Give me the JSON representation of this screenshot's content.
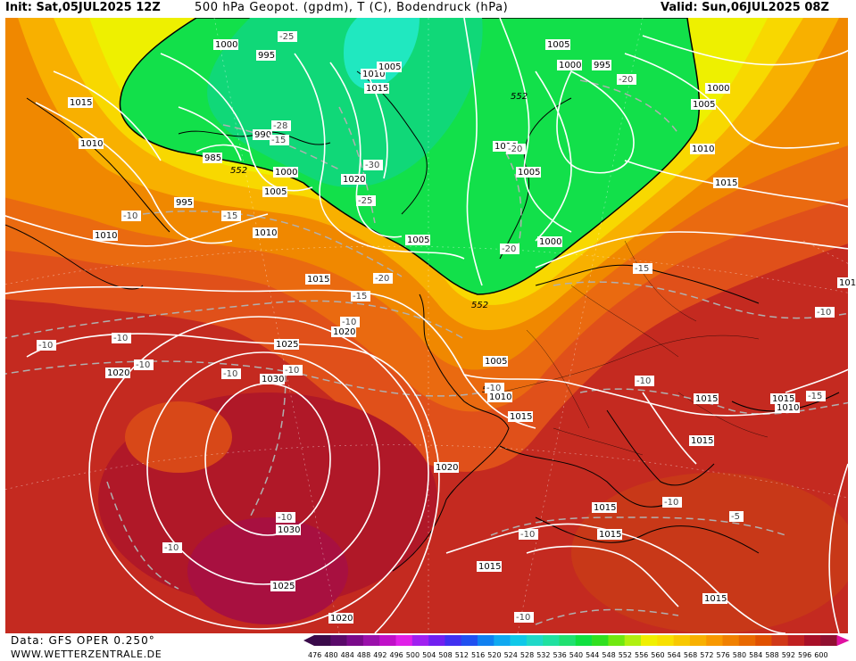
{
  "header": {
    "init": "Init: Sat,05JUL2025 12Z",
    "title": "500 hPa Geopot. (gpdm), T (C), Bodendruck (hPa)",
    "valid": "Valid: Sun,06JUL2025 08Z"
  },
  "footer": {
    "source": "Data: GFS OPER 0.250°",
    "site": "WWW.WETTERZENTRALE.DE"
  },
  "colorscale": {
    "labels": [
      "476",
      "480",
      "484",
      "488",
      "492",
      "496",
      "500",
      "504",
      "508",
      "512",
      "516",
      "520",
      "524",
      "528",
      "532",
      "536",
      "540",
      "544",
      "548",
      "552",
      "556",
      "560",
      "564",
      "568",
      "572",
      "576",
      "580",
      "584",
      "588",
      "592",
      "596",
      "600"
    ],
    "colors": [
      "#3a0a4a",
      "#5a0a6a",
      "#7a0a8a",
      "#9a10aa",
      "#c010c8",
      "#e020e8",
      "#a020f0",
      "#7020f0",
      "#4030f0",
      "#2050f0",
      "#1080f0",
      "#10a8f0",
      "#10c8e8",
      "#20d8c8",
      "#20e0a0",
      "#20e070",
      "#10e040",
      "#30e020",
      "#70e810",
      "#b0f010",
      "#f0f000",
      "#f8e000",
      "#f8c800",
      "#f8b000",
      "#f89800",
      "#f08000",
      "#e86800",
      "#e05000",
      "#d03818",
      "#c02020",
      "#a81028",
      "#901030"
    ]
  },
  "map": {
    "contour_labels_geopot": [
      "552",
      "552",
      "552",
      "552"
    ],
    "pressure_labels": [
      "1000",
      "995",
      "1005",
      "1000",
      "995",
      "1010",
      "1005",
      "1015",
      "1015",
      "1010",
      "990",
      "985",
      "1000",
      "995",
      "1005",
      "1020",
      "1010",
      "1005",
      "1000",
      "1005",
      "1000",
      "1010",
      "1005",
      "1015",
      "1010",
      "1015",
      "1010",
      "1020",
      "1025",
      "1030",
      "1030",
      "1025",
      "1020",
      "1020",
      "1015",
      "1005",
      "1010",
      "1015",
      "1015",
      "1015",
      "1015",
      "1020",
      "1015",
      "1015",
      "1015",
      "1015",
      "1010"
    ],
    "temp_labels": [
      "-25",
      "-20",
      "-28",
      "-15",
      "-30",
      "-25",
      "-20",
      "-20",
      "-10",
      "-15",
      "-20",
      "-15",
      "-10",
      "-10",
      "-10",
      "-10",
      "-10",
      "-10",
      "-15",
      "-10",
      "-10",
      "-10",
      "-10",
      "-10",
      "-10",
      "-5",
      "-10",
      "-10",
      "-15"
    ]
  }
}
